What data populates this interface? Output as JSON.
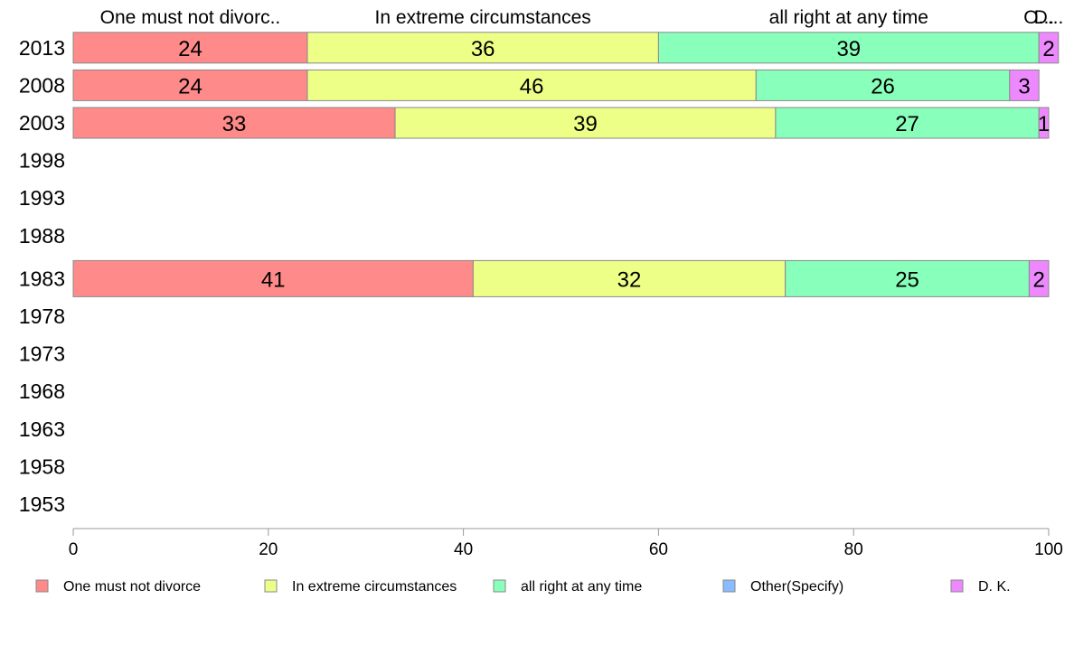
{
  "chart_data": {
    "type": "bar",
    "orientation": "horizontal",
    "stacked": true,
    "categories": [
      "2013",
      "2008",
      "2003",
      "1998",
      "1993",
      "1988",
      "1983",
      "1978",
      "1973",
      "1968",
      "1963",
      "1958",
      "1953"
    ],
    "series": [
      {
        "name": "One must not divorce",
        "color": "#ff8a8a",
        "values": [
          24,
          24,
          33,
          null,
          null,
          null,
          41,
          null,
          null,
          null,
          null,
          null,
          null
        ]
      },
      {
        "name": "In extreme circumstances",
        "color": "#eeff88",
        "values": [
          36,
          46,
          39,
          null,
          null,
          null,
          32,
          null,
          null,
          null,
          null,
          null,
          null
        ]
      },
      {
        "name": "all right at any time",
        "color": "#88ffbb",
        "values": [
          39,
          26,
          27,
          null,
          null,
          null,
          25,
          null,
          null,
          null,
          null,
          null,
          null
        ]
      },
      {
        "name": "Other(Specify)",
        "color": "#88bbff",
        "values": [
          0,
          0,
          0,
          null,
          null,
          null,
          0,
          null,
          null,
          null,
          null,
          null,
          null
        ]
      },
      {
        "name": "D. K.",
        "color": "#ee88ff",
        "values": [
          2,
          3,
          1,
          null,
          null,
          null,
          2,
          null,
          null,
          null,
          null,
          null,
          null
        ]
      }
    ],
    "top_labels": [
      "One must not divorc..",
      "In extreme circumstances",
      "all right at any time",
      "O...",
      "D..."
    ],
    "x_ticks": [
      0,
      20,
      40,
      60,
      80,
      100
    ],
    "xlim": [
      0,
      100
    ],
    "grid": false,
    "legend_position": "bottom",
    "title": "",
    "xlabel": "",
    "ylabel": ""
  }
}
